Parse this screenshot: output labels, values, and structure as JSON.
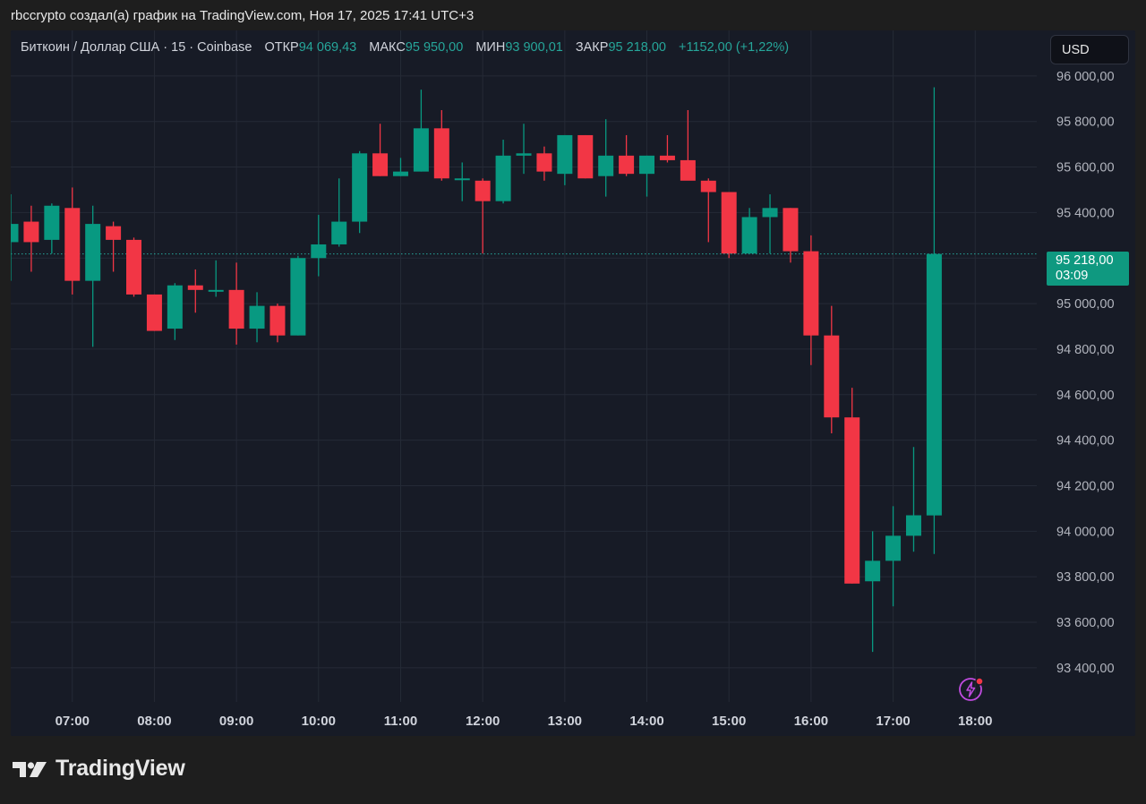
{
  "header": {
    "caption": "rbccrypto создал(а) график на TradingView.com, Ноя 17, 2025 17:41 UTC+3"
  },
  "legend": {
    "symbol": "Биткоин / Доллар США · 15 · Coinbase",
    "open_label": "ОТКР",
    "open_value": "94 069,43",
    "high_label": "МАКС",
    "high_value": "95 950,00",
    "low_label": "МИН",
    "low_value": "93 900,01",
    "close_label": "ЗАКР",
    "close_value": "95 218,00",
    "change": "+1152,00 (+1,22%)"
  },
  "currency_button": {
    "label": "USD"
  },
  "price_tag": {
    "price": "95 218,00",
    "countdown": "03:09"
  },
  "logo": {
    "text": "TradingView"
  },
  "icons": {
    "alert": "flash-alert-icon",
    "logo": "tradingview-logo-icon"
  },
  "colors": {
    "up": "#089981",
    "down": "#f23645",
    "background": "#171b26",
    "grid": "#252a36",
    "axis_text": "#b2b5be",
    "page": "#1e1e1e"
  },
  "chart_data": {
    "type": "candlestick",
    "timeframe": "15",
    "ylim": [
      93250,
      96200
    ],
    "y_ticks": [
      93400,
      93600,
      93800,
      94000,
      94200,
      94400,
      94600,
      94800,
      95000,
      95200,
      95400,
      95600,
      95800,
      96000
    ],
    "y_tick_labels": [
      "93 400,00",
      "93 600,00",
      "93 800,00",
      "94 000,00",
      "94 200,00",
      "94 400,00",
      "94 600,00",
      "94 800,00",
      "95 000,00",
      "95 200,00",
      "95 400,00",
      "95 600,00",
      "95 800,00",
      "96 000,00"
    ],
    "x_ticks": [
      "07:00",
      "08:00",
      "09:00",
      "10:00",
      "11:00",
      "12:00",
      "13:00",
      "14:00",
      "15:00",
      "16:00",
      "17:00",
      "18:00"
    ],
    "x_start": "06:15",
    "x_end": "18:45",
    "last_price": 95218.0,
    "candles": [
      {
        "t": "06:15",
        "o": 95270,
        "h": 95480,
        "l": 95100,
        "c": 95350
      },
      {
        "t": "06:30",
        "o": 95360,
        "h": 95430,
        "l": 95140,
        "c": 95270
      },
      {
        "t": "06:45",
        "o": 95280,
        "h": 95440,
        "l": 95220,
        "c": 95430
      },
      {
        "t": "07:00",
        "o": 95420,
        "h": 95510,
        "l": 95040,
        "c": 95100
      },
      {
        "t": "07:15",
        "o": 95100,
        "h": 95430,
        "l": 94810,
        "c": 95350
      },
      {
        "t": "07:30",
        "o": 95340,
        "h": 95360,
        "l": 95140,
        "c": 95280
      },
      {
        "t": "07:45",
        "o": 95280,
        "h": 95290,
        "l": 95030,
        "c": 95040
      },
      {
        "t": "08:00",
        "o": 95040,
        "h": 95040,
        "l": 94880,
        "c": 94880
      },
      {
        "t": "08:15",
        "o": 94890,
        "h": 95090,
        "l": 94840,
        "c": 95080
      },
      {
        "t": "08:30",
        "o": 95080,
        "h": 95150,
        "l": 94960,
        "c": 95060
      },
      {
        "t": "08:45",
        "o": 95060,
        "h": 95190,
        "l": 95030,
        "c": 95060
      },
      {
        "t": "09:00",
        "o": 95060,
        "h": 95180,
        "l": 94820,
        "c": 94890
      },
      {
        "t": "09:15",
        "o": 94890,
        "h": 95050,
        "l": 94830,
        "c": 94990
      },
      {
        "t": "09:30",
        "o": 94990,
        "h": 95000,
        "l": 94830,
        "c": 94860
      },
      {
        "t": "09:45",
        "o": 94860,
        "h": 95210,
        "l": 94860,
        "c": 95200
      },
      {
        "t": "10:00",
        "o": 95200,
        "h": 95390,
        "l": 95120,
        "c": 95260
      },
      {
        "t": "10:15",
        "o": 95260,
        "h": 95550,
        "l": 95250,
        "c": 95360
      },
      {
        "t": "10:30",
        "o": 95360,
        "h": 95670,
        "l": 95310,
        "c": 95660
      },
      {
        "t": "10:45",
        "o": 95660,
        "h": 95790,
        "l": 95560,
        "c": 95560
      },
      {
        "t": "11:00",
        "o": 95560,
        "h": 95640,
        "l": 95560,
        "c": 95580
      },
      {
        "t": "11:15",
        "o": 95580,
        "h": 95940,
        "l": 95580,
        "c": 95770
      },
      {
        "t": "11:30",
        "o": 95770,
        "h": 95850,
        "l": 95540,
        "c": 95550
      },
      {
        "t": "11:45",
        "o": 95550,
        "h": 95620,
        "l": 95450,
        "c": 95550
      },
      {
        "t": "12:00",
        "o": 95540,
        "h": 95550,
        "l": 95220,
        "c": 95450
      },
      {
        "t": "12:15",
        "o": 95450,
        "h": 95720,
        "l": 95440,
        "c": 95650
      },
      {
        "t": "12:30",
        "o": 95650,
        "h": 95790,
        "l": 95570,
        "c": 95660
      },
      {
        "t": "12:45",
        "o": 95660,
        "h": 95690,
        "l": 95540,
        "c": 95580
      },
      {
        "t": "13:00",
        "o": 95570,
        "h": 95740,
        "l": 95520,
        "c": 95740
      },
      {
        "t": "13:15",
        "o": 95740,
        "h": 95740,
        "l": 95550,
        "c": 95550
      },
      {
        "t": "13:30",
        "o": 95560,
        "h": 95810,
        "l": 95470,
        "c": 95650
      },
      {
        "t": "13:45",
        "o": 95650,
        "h": 95740,
        "l": 95560,
        "c": 95570
      },
      {
        "t": "14:00",
        "o": 95570,
        "h": 95650,
        "l": 95470,
        "c": 95650
      },
      {
        "t": "14:15",
        "o": 95650,
        "h": 95740,
        "l": 95620,
        "c": 95630
      },
      {
        "t": "14:30",
        "o": 95630,
        "h": 95850,
        "l": 95550,
        "c": 95540
      },
      {
        "t": "14:45",
        "o": 95540,
        "h": 95550,
        "l": 95270,
        "c": 95490
      },
      {
        "t": "15:00",
        "o": 95490,
        "h": 95490,
        "l": 95200,
        "c": 95220
      },
      {
        "t": "15:15",
        "o": 95220,
        "h": 95420,
        "l": 95220,
        "c": 95380
      },
      {
        "t": "15:30",
        "o": 95380,
        "h": 95480,
        "l": 95220,
        "c": 95420
      },
      {
        "t": "15:45",
        "o": 95420,
        "h": 95420,
        "l": 95180,
        "c": 95230
      },
      {
        "t": "16:00",
        "o": 95230,
        "h": 95300,
        "l": 94730,
        "c": 94860
      },
      {
        "t": "16:15",
        "o": 94860,
        "h": 94990,
        "l": 94430,
        "c": 94500
      },
      {
        "t": "16:30",
        "o": 94500,
        "h": 94630,
        "l": 93770,
        "c": 93770
      },
      {
        "t": "16:45",
        "o": 93780,
        "h": 94000,
        "l": 93470,
        "c": 93870
      },
      {
        "t": "17:00",
        "o": 93870,
        "h": 94110,
        "l": 93670,
        "c": 93980
      },
      {
        "t": "17:15",
        "o": 93980,
        "h": 94370,
        "l": 93910,
        "c": 94070
      },
      {
        "t": "17:30",
        "o": 94069.43,
        "h": 95950.0,
        "l": 93900.01,
        "c": 95218.0
      }
    ]
  }
}
